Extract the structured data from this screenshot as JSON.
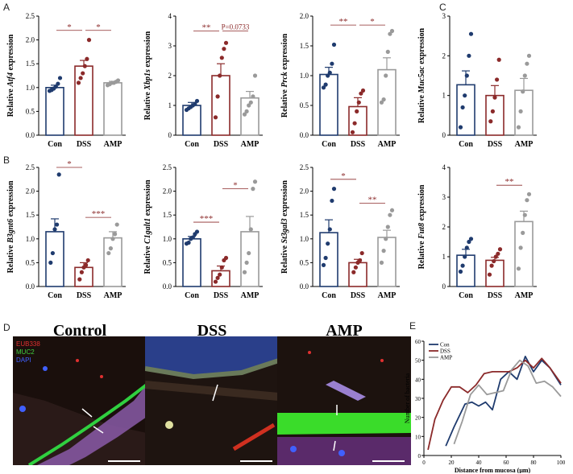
{
  "panel_labels": {
    "A": "A",
    "B": "B",
    "C": "C",
    "D": "D",
    "E": "E"
  },
  "chart_data": [
    {
      "id": "atf4",
      "type": "bar",
      "categories": [
        "Con",
        "DSS",
        "AMP"
      ],
      "values": [
        1.0,
        1.45,
        1.1
      ],
      "err": [
        0.05,
        0.12,
        0.03
      ],
      "points": [
        [
          0.93,
          0.95,
          0.98,
          1.02,
          1.08,
          1.2
        ],
        [
          1.1,
          1.2,
          1.3,
          1.45,
          1.6,
          2.0
        ],
        [
          1.05,
          1.07,
          1.1,
          1.1,
          1.12,
          1.15
        ]
      ],
      "ylabel_pre": "Relative ",
      "ylabel_gene": "Atf4",
      "ylabel_post": " expression",
      "ylim": [
        0,
        2.5
      ],
      "yticks": [
        "0.0",
        "0.5",
        "1.0",
        "1.5",
        "2.0",
        "2.5"
      ],
      "sig": [
        {
          "from": 0,
          "to": 1,
          "text": "*",
          "y": 2.2
        },
        {
          "from": 1,
          "to": 2,
          "text": "*",
          "y": 2.2
        }
      ]
    },
    {
      "id": "xbp1s",
      "type": "bar",
      "categories": [
        "Con",
        "DSS",
        "AMP"
      ],
      "values": [
        1.0,
        2.0,
        1.25
      ],
      "err": [
        0.1,
        0.4,
        0.22
      ],
      "points": [
        [
          0.85,
          0.9,
          0.95,
          1.0,
          1.05,
          1.15
        ],
        [
          0.6,
          1.3,
          2.0,
          2.6,
          2.9,
          3.1
        ],
        [
          0.7,
          0.8,
          1.0,
          1.1,
          1.3,
          2.0
        ]
      ],
      "ylabel_pre": "Relative ",
      "ylabel_gene": "Xbp1s",
      "ylabel_post": " expression",
      "ylim": [
        0,
        4
      ],
      "yticks": [
        "0",
        "1",
        "2",
        "3",
        "4"
      ],
      "sig": [
        {
          "from": 0,
          "to": 1,
          "text": "**",
          "y": 3.5
        },
        {
          "from": 1,
          "to": 2,
          "text": "P=0.0733",
          "y": 3.5
        }
      ]
    },
    {
      "id": "prck",
      "type": "bar",
      "categories": [
        "Con",
        "DSS",
        "AMP"
      ],
      "values": [
        1.02,
        0.48,
        1.1
      ],
      "err": [
        0.12,
        0.15,
        0.2
      ],
      "points": [
        [
          0.8,
          0.85,
          1.0,
          1.05,
          1.2,
          1.52
        ],
        [
          0.05,
          0.2,
          0.4,
          0.55,
          0.7,
          0.75
        ],
        [
          0.55,
          0.6,
          1.0,
          1.4,
          1.7,
          1.75
        ]
      ],
      "ylabel_pre": "Relative ",
      "ylabel_gene": "Prck",
      "ylabel_post": " expression",
      "ylim": [
        0,
        2.0
      ],
      "yticks": [
        "0.0",
        "0.5",
        "1.0",
        "1.5",
        "2.0"
      ],
      "sig": [
        {
          "from": 0,
          "to": 1,
          "text": "**",
          "y": 1.85
        },
        {
          "from": 1,
          "to": 2,
          "text": "*",
          "y": 1.85
        }
      ]
    },
    {
      "id": "muc5ac",
      "type": "bar",
      "categories": [
        "Con",
        "DSS",
        "AMP"
      ],
      "values": [
        1.27,
        1.0,
        1.13
      ],
      "err": [
        0.35,
        0.25,
        0.3
      ],
      "points": [
        [
          0.2,
          0.7,
          1.0,
          1.5,
          2.0,
          2.55
        ],
        [
          0.35,
          0.6,
          0.95,
          1.4,
          1.9
        ],
        [
          0.2,
          0.6,
          1.1,
          1.5,
          1.8,
          2.0
        ]
      ],
      "ylabel_pre": "Relative ",
      "ylabel_gene": "Muc5ac",
      "ylabel_post": " expression",
      "ylim": [
        0,
        3
      ],
      "yticks": [
        "0",
        "1",
        "2",
        "3"
      ],
      "sig": []
    },
    {
      "id": "b3gnt6",
      "type": "bar",
      "categories": [
        "Con",
        "DSS",
        "AMP"
      ],
      "values": [
        1.15,
        0.4,
        1.02
      ],
      "err": [
        0.27,
        0.1,
        0.13
      ],
      "points": [
        [
          0.5,
          0.7,
          1.2,
          1.3,
          2.35
        ],
        [
          0.15,
          0.3,
          0.4,
          0.45,
          0.55
        ],
        [
          0.7,
          0.8,
          1.0,
          1.1,
          1.3
        ]
      ],
      "ylabel_pre": "Relative ",
      "ylabel_gene": "B3gnt6",
      "ylabel_post": " expression",
      "ylim": [
        0,
        2.5
      ],
      "yticks": [
        "0.0",
        "0.5",
        "1.0",
        "1.5",
        "2.0",
        "2.5"
      ],
      "sig": [
        {
          "from": 0,
          "to": 1,
          "text": "*",
          "y": 2.5
        },
        {
          "from": 1,
          "to": 2,
          "text": "***",
          "y": 1.45
        }
      ]
    },
    {
      "id": "c1galt1",
      "type": "bar",
      "categories": [
        "Con",
        "DSS",
        "AMP"
      ],
      "values": [
        1.0,
        0.33,
        1.15
      ],
      "err": [
        0.05,
        0.1,
        0.32
      ],
      "points": [
        [
          0.9,
          0.92,
          1.0,
          1.03,
          1.1,
          1.15
        ],
        [
          0.1,
          0.18,
          0.25,
          0.4,
          0.55,
          0.6
        ],
        [
          0.3,
          0.5,
          0.7,
          1.2,
          2.05,
          2.2
        ]
      ],
      "ylabel_pre": "Relative ",
      "ylabel_gene": "C1galt1",
      "ylabel_post": " expression",
      "ylim": [
        0,
        2.5
      ],
      "yticks": [
        "0.0",
        "0.5",
        "1.0",
        "1.5",
        "2.0",
        "2.5"
      ],
      "sig": [
        {
          "from": 0,
          "to": 1,
          "text": "***",
          "y": 1.35
        },
        {
          "from": 1,
          "to": 2,
          "text": "*",
          "y": 2.05
        }
      ]
    },
    {
      "id": "st3gal3",
      "type": "bar",
      "categories": [
        "Con",
        "DSS",
        "AMP"
      ],
      "values": [
        1.13,
        0.5,
        1.03
      ],
      "err": [
        0.27,
        0.07,
        0.15
      ],
      "points": [
        [
          0.45,
          0.6,
          0.9,
          1.2,
          1.8,
          2.05
        ],
        [
          0.3,
          0.4,
          0.5,
          0.55,
          0.7
        ],
        [
          0.5,
          0.75,
          1.0,
          1.25,
          1.5,
          1.6
        ]
      ],
      "ylabel_pre": "Relative ",
      "ylabel_gene": "St3gal3",
      "ylabel_post": " expression",
      "ylim": [
        0,
        2.5
      ],
      "yticks": [
        "0.0",
        "0.5",
        "1.0",
        "1.5",
        "2.0",
        "2.5"
      ],
      "sig": [
        {
          "from": 0,
          "to": 1,
          "text": "*",
          "y": 2.25
        },
        {
          "from": 1,
          "to": 2,
          "text": "**",
          "y": 1.75
        }
      ]
    },
    {
      "id": "fut8",
      "type": "bar",
      "categories": [
        "Con",
        "DSS",
        "AMP"
      ],
      "values": [
        1.05,
        0.88,
        2.18
      ],
      "err": [
        0.2,
        0.1,
        0.35
      ],
      "points": [
        [
          0.5,
          0.7,
          1.0,
          1.3,
          1.5,
          1.6
        ],
        [
          0.4,
          0.7,
          0.85,
          1.0,
          1.1,
          1.25
        ],
        [
          0.6,
          1.3,
          1.8,
          2.4,
          2.9,
          3.1
        ]
      ],
      "ylabel_pre": "Relative ",
      "ylabel_gene": "Fut8",
      "ylabel_post": " expression",
      "ylim": [
        0,
        4
      ],
      "yticks": [
        "0",
        "1",
        "2",
        "3",
        "4"
      ],
      "sig": [
        {
          "from": 1,
          "to": 2,
          "text": "**",
          "y": 3.4
        }
      ]
    },
    {
      "id": "bacteria",
      "type": "line",
      "xlabel": "Distance from mucosa (μm)",
      "ylabel": "Number of bacteria",
      "xlim": [
        0,
        100
      ],
      "ylim": [
        0,
        60
      ],
      "xticks": [
        "0",
        "20",
        "40",
        "60",
        "80",
        "100"
      ],
      "yticks": [
        "0",
        "10",
        "20",
        "30",
        "40",
        "50",
        "60"
      ],
      "legend_position": "top-left",
      "series": [
        {
          "name": "Con",
          "color": "#1f3b6e",
          "x": [
            16,
            22,
            30,
            35,
            40,
            45,
            50,
            56,
            62,
            68,
            74,
            80,
            86,
            92,
            100
          ],
          "y": [
            5,
            15,
            27,
            28,
            26,
            28,
            24,
            40,
            44,
            40,
            52,
            44,
            50,
            46,
            37
          ]
        },
        {
          "name": "DSS",
          "color": "#8b2a2a",
          "x": [
            3,
            8,
            14,
            20,
            26,
            32,
            38,
            44,
            50,
            56,
            62,
            68,
            74,
            80,
            86,
            92,
            100
          ],
          "y": [
            3,
            19,
            29,
            36,
            36,
            33,
            37,
            43,
            44,
            44,
            44,
            46,
            50,
            46,
            51,
            46,
            38
          ]
        },
        {
          "name": "AMP",
          "color": "#9a9a9a",
          "x": [
            22,
            28,
            34,
            40,
            46,
            52,
            58,
            64,
            70,
            76,
            82,
            88,
            94,
            100
          ],
          "y": [
            6,
            18,
            32,
            37,
            32,
            33,
            34,
            45,
            50,
            47,
            38,
            39,
            36,
            31
          ]
        }
      ]
    }
  ],
  "microscopy": {
    "titles": [
      "Control",
      "DSS",
      "AMP"
    ],
    "legend": [
      {
        "text": "EUB338",
        "color": "#e03030"
      },
      {
        "text": "MUC2",
        "color": "#40d040"
      },
      {
        "text": "DAPI",
        "color": "#4060ff"
      }
    ]
  }
}
